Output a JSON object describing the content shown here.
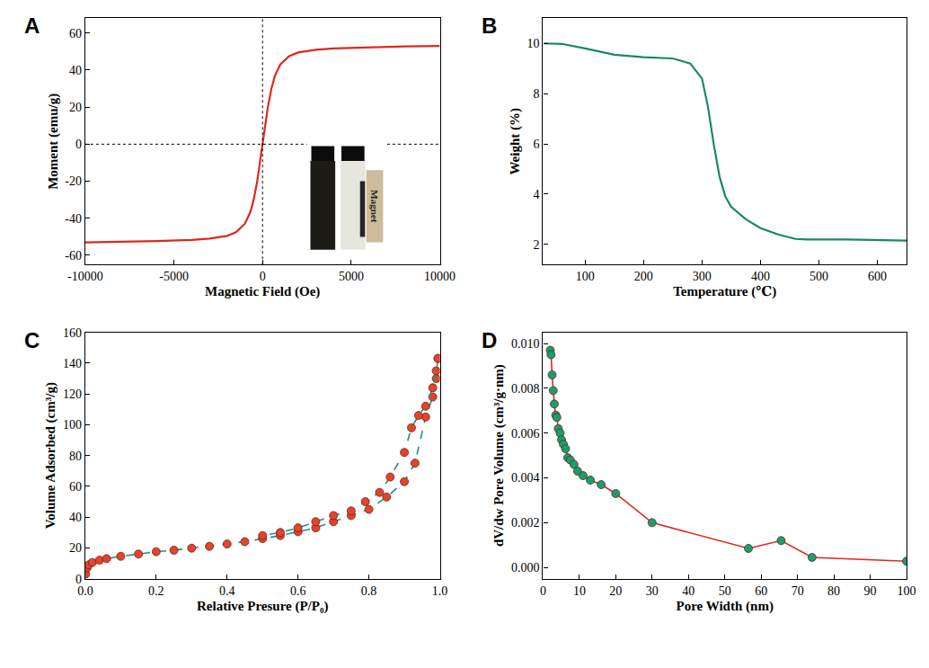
{
  "chart_data": [
    {
      "title": "A",
      "type": "line",
      "x_label": "Magnetic Field (Oe)",
      "y_label": "Moment (emu/g)",
      "xlim": [
        -10000,
        10000
      ],
      "xticks": [
        -10000,
        -5000,
        0,
        5000,
        10000
      ],
      "ylim": [
        -65,
        68
      ],
      "yticks": [
        -60,
        -40,
        -20,
        0,
        20,
        40,
        60
      ],
      "grid": false,
      "annotations": [
        "Magnet"
      ],
      "series": [
        {
          "color": "#e0281e",
          "line_style": "solid",
          "x": [
            -10000,
            -8000,
            -6000,
            -4000,
            -3000,
            -2000,
            -1500,
            -1000,
            -700,
            -500,
            -300,
            -150,
            0,
            150,
            300,
            500,
            700,
            1000,
            1500,
            2000,
            3000,
            4000,
            6000,
            8000,
            10000
          ],
          "values": [
            -53,
            -52.8,
            -52.3,
            -51.7,
            -51,
            -49.5,
            -47.5,
            -43,
            -37,
            -30,
            -20,
            -10,
            0,
            10,
            20,
            30,
            37,
            43,
            47.5,
            49.5,
            51,
            51.7,
            52.3,
            52.8,
            53
          ]
        }
      ]
    },
    {
      "title": "B",
      "type": "line",
      "x_label": "Temperature (℃)",
      "y_label": "Weight (%)",
      "xlim": [
        28,
        650
      ],
      "xticks": [
        100,
        200,
        300,
        400,
        500,
        600
      ],
      "ylim": [
        1.2,
        11
      ],
      "yticks": [
        2,
        4,
        6,
        8,
        10
      ],
      "grid": false,
      "series": [
        {
          "color": "#1a8a5a",
          "line_style": "solid",
          "x": [
            30,
            60,
            100,
            150,
            200,
            250,
            280,
            300,
            310,
            320,
            330,
            340,
            350,
            375,
            400,
            430,
            460,
            480,
            550,
            650
          ],
          "values": [
            10.0,
            9.98,
            9.8,
            9.55,
            9.45,
            9.4,
            9.2,
            8.6,
            7.5,
            6.0,
            4.7,
            3.9,
            3.5,
            3.0,
            2.65,
            2.4,
            2.22,
            2.2,
            2.2,
            2.15
          ]
        }
      ]
    },
    {
      "title": "C",
      "type": "scatter",
      "x_label": "Relative Presure (P/P₀)",
      "y_label": "Volume Adsorbed (cm³/g)",
      "xlim": [
        0,
        1
      ],
      "xticks": [
        {
          "value": 0,
          "label": "0.0"
        },
        0.2,
        0.4,
        0.6,
        0.8,
        {
          "value": 1,
          "label": "1.0"
        }
      ],
      "ylim": [
        0,
        160
      ],
      "yticks": [
        0,
        20,
        40,
        60,
        80,
        100,
        120,
        140,
        160
      ],
      "grid": false,
      "series": [
        {
          "color": "#e8412c",
          "marker": "circle",
          "line_style": "dash",
          "x": [
            0.001,
            0.005,
            0.01,
            0.02,
            0.04,
            0.06,
            0.1,
            0.15,
            0.2,
            0.25,
            0.3,
            0.35,
            0.4,
            0.45,
            0.5,
            0.55,
            0.6,
            0.65,
            0.7,
            0.75,
            0.8,
            0.85,
            0.9,
            0.93,
            0.96,
            0.98,
            0.99,
            0.995
          ],
          "values": [
            3,
            7,
            9,
            10.5,
            12,
            13,
            14.5,
            16,
            17.5,
            18.5,
            19.8,
            21,
            22.5,
            24,
            26,
            28,
            30.5,
            33,
            37,
            41,
            45,
            53,
            63,
            75,
            105,
            118,
            130,
            143
          ]
        },
        {
          "color": "#e8412c",
          "marker": "circle",
          "line_style": "dash",
          "x": [
            0.995,
            0.99,
            0.98,
            0.96,
            0.94,
            0.92,
            0.9,
            0.86,
            0.83,
            0.79,
            0.75,
            0.7,
            0.65,
            0.6,
            0.55,
            0.5
          ],
          "values": [
            143,
            135,
            124,
            112,
            106,
            98,
            82,
            66,
            56,
            50,
            44,
            41,
            37,
            33,
            30,
            28
          ]
        }
      ]
    },
    {
      "title": "D",
      "type": "scatter",
      "x_label": "Pore Width (nm)",
      "y_label": "dV/dw Pore Volume (cm³/g·nm)",
      "xlim": [
        0,
        100
      ],
      "xticks": [
        0,
        10,
        20,
        30,
        40,
        50,
        60,
        70,
        80,
        90,
        100
      ],
      "ylim": [
        -0.0005,
        0.0105
      ],
      "yticks": [
        {
          "value": 0,
          "label": "0.000"
        },
        {
          "value": 0.002,
          "label": "0.002"
        },
        {
          "value": 0.004,
          "label": "0.004"
        },
        {
          "value": 0.006,
          "label": "0.006"
        },
        {
          "value": 0.008,
          "label": "0.008"
        },
        {
          "value": 0.01,
          "label": "0.010"
        }
      ],
      "grid": false,
      "series": [
        {
          "color": "#1a9e6e",
          "marker": "circle",
          "line_style": "solid",
          "x": [
            2,
            2.2,
            2.5,
            2.8,
            3.1,
            3.5,
            3.8,
            4.2,
            4.7,
            5.1,
            5.6,
            6.2,
            6.8,
            7.5,
            8.5,
            9.5,
            11,
            13,
            16,
            20,
            30,
            56.5,
            65.5,
            74,
            100
          ],
          "values": [
            0.0097,
            0.0095,
            0.0086,
            0.0079,
            0.0073,
            0.0068,
            0.0067,
            0.0062,
            0.006,
            0.0057,
            0.0055,
            0.0053,
            0.0049,
            0.0048,
            0.0046,
            0.0043,
            0.0041,
            0.0039,
            0.0037,
            0.0033,
            0.002,
            0.00085,
            0.0012,
            0.00045,
            0.00028
          ]
        }
      ]
    }
  ]
}
